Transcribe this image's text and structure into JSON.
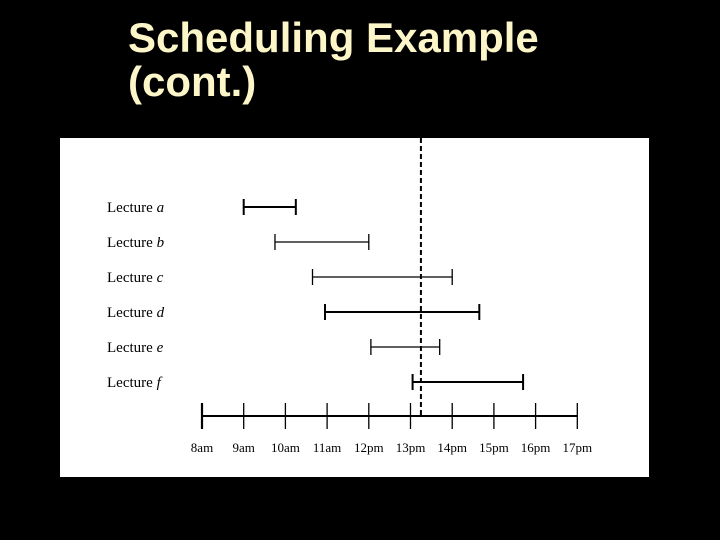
{
  "slide": {
    "title_line1": "Scheduling Example",
    "title_line2": "(cont.)",
    "title_color": "#fdf6c8",
    "background_color": "#000000"
  },
  "figure": {
    "background_color": "#ffffff",
    "time_ticks": [
      "8am",
      "9am",
      "10am",
      "11am",
      "12pm",
      "13pm",
      "14pm",
      "15pm",
      "16pm",
      "17pm"
    ],
    "lectures": [
      {
        "prefix": "Lecture",
        "letter": "a",
        "start_hour": 9.0,
        "end_hour": 10.25,
        "bold": true
      },
      {
        "prefix": "Lecture",
        "letter": "b",
        "start_hour": 9.75,
        "end_hour": 12.0,
        "bold": false
      },
      {
        "prefix": "Lecture",
        "letter": "c",
        "start_hour": 10.65,
        "end_hour": 14.0,
        "bold": false
      },
      {
        "prefix": "Lecture",
        "letter": "d",
        "start_hour": 10.95,
        "end_hour": 14.65,
        "bold": true
      },
      {
        "prefix": "Lecture",
        "letter": "e",
        "start_hour": 12.05,
        "end_hour": 13.7,
        "bold": false
      },
      {
        "prefix": "Lecture",
        "letter": "f",
        "start_hour": 13.05,
        "end_hour": 15.7,
        "bold": true
      }
    ],
    "current_time_hour": 13.25
  }
}
